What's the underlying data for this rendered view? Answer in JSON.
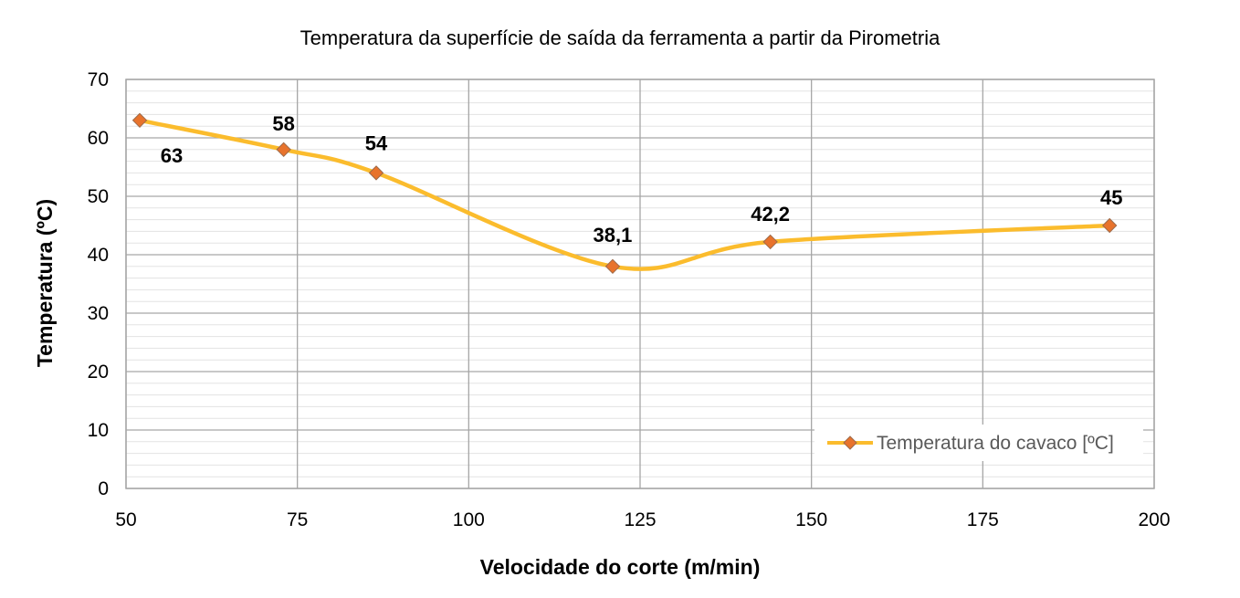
{
  "chart_data": {
    "type": "line",
    "title": "Temperatura da superfície de saída da ferramenta a partir da Pirometria",
    "xlabel": "Velocidade do corte (m/min)",
    "ylabel": "Temperatura (ºC)",
    "xlim": [
      50,
      200
    ],
    "ylim": [
      0,
      70
    ],
    "x_ticks": [
      "50",
      "75",
      "100",
      "125",
      "150",
      "175",
      "200"
    ],
    "y_ticks": [
      "0",
      "10",
      "20",
      "30",
      "40",
      "50",
      "60",
      "70"
    ],
    "grid": true,
    "legend_position": "bottom-right",
    "series": [
      {
        "name": "Temperatura do cavaco [ºC]",
        "line_color": "#FBBC2D",
        "marker_color": "#E8732C",
        "marker": "diamond",
        "smooth": true,
        "points": [
          {
            "x": 52,
            "y": 63,
            "label": "63"
          },
          {
            "x": 73,
            "y": 58,
            "label": "58"
          },
          {
            "x": 86.5,
            "y": 54,
            "label": "54"
          },
          {
            "x": 121,
            "y": 38,
            "label": "38,1"
          },
          {
            "x": 144,
            "y": 42.2,
            "label": "42,2"
          },
          {
            "x": 193.5,
            "y": 45,
            "label": "45"
          }
        ]
      }
    ]
  }
}
